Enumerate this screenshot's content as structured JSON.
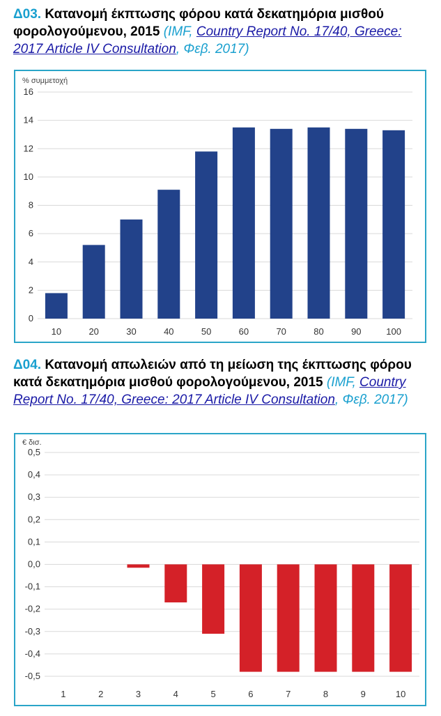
{
  "charts": [
    {
      "code": "Δ03.",
      "title": " Κατανομή έκπτωσης φόρου κατά δεκατημόρια μισθού φορολογούμενου, 2015 ",
      "source_pre": "(IMF, ",
      "source_link": "Country Report No. 17/40, Greece: 2017 Article IV Consultation",
      "source_post": ", Φεβ. 2017)"
    },
    {
      "code": "Δ04.",
      "title": " Κατανομή απωλειών από τη μείωση της έκπτωσης φόρου κατά δεκατημόρια μισθού φορολογούμενου, 2015 ",
      "source_pre": "(IMF, ",
      "source_link": "Country Report No. 17/40, Greece: 2017 Article IV Consultation",
      "source_post": ", Φεβ. 2017)"
    }
  ],
  "chart_data": [
    {
      "type": "bar",
      "ylabel": "% συμμετοχή",
      "categories": [
        "10",
        "20",
        "30",
        "40",
        "50",
        "60",
        "70",
        "80",
        "90",
        "100"
      ],
      "values": [
        1.8,
        5.2,
        7.0,
        9.1,
        11.8,
        13.5,
        13.4,
        13.5,
        13.4,
        13.3
      ],
      "ylim": [
        0,
        16
      ],
      "yticks": [
        "0",
        "2",
        "4",
        "6",
        "8",
        "10",
        "12",
        "14",
        "16"
      ],
      "grid": true,
      "color": "#22428a"
    },
    {
      "type": "bar",
      "ylabel": "€ δισ.",
      "categories": [
        "1",
        "2",
        "3",
        "4",
        "5",
        "6",
        "7",
        "8",
        "9",
        "10"
      ],
      "values": [
        0,
        0,
        -0.015,
        -0.17,
        -0.31,
        -0.48,
        -0.48,
        -0.48,
        -0.48,
        -0.48
      ],
      "ylim": [
        -0.5,
        0.5
      ],
      "yticks": [
        "-0,5",
        "-0,4",
        "-0,3",
        "-0,2",
        "-0,1",
        "0,0",
        "0,1",
        "0,2",
        "0,3",
        "0,4",
        "0,5"
      ],
      "grid": true,
      "color": "#d42128"
    }
  ]
}
